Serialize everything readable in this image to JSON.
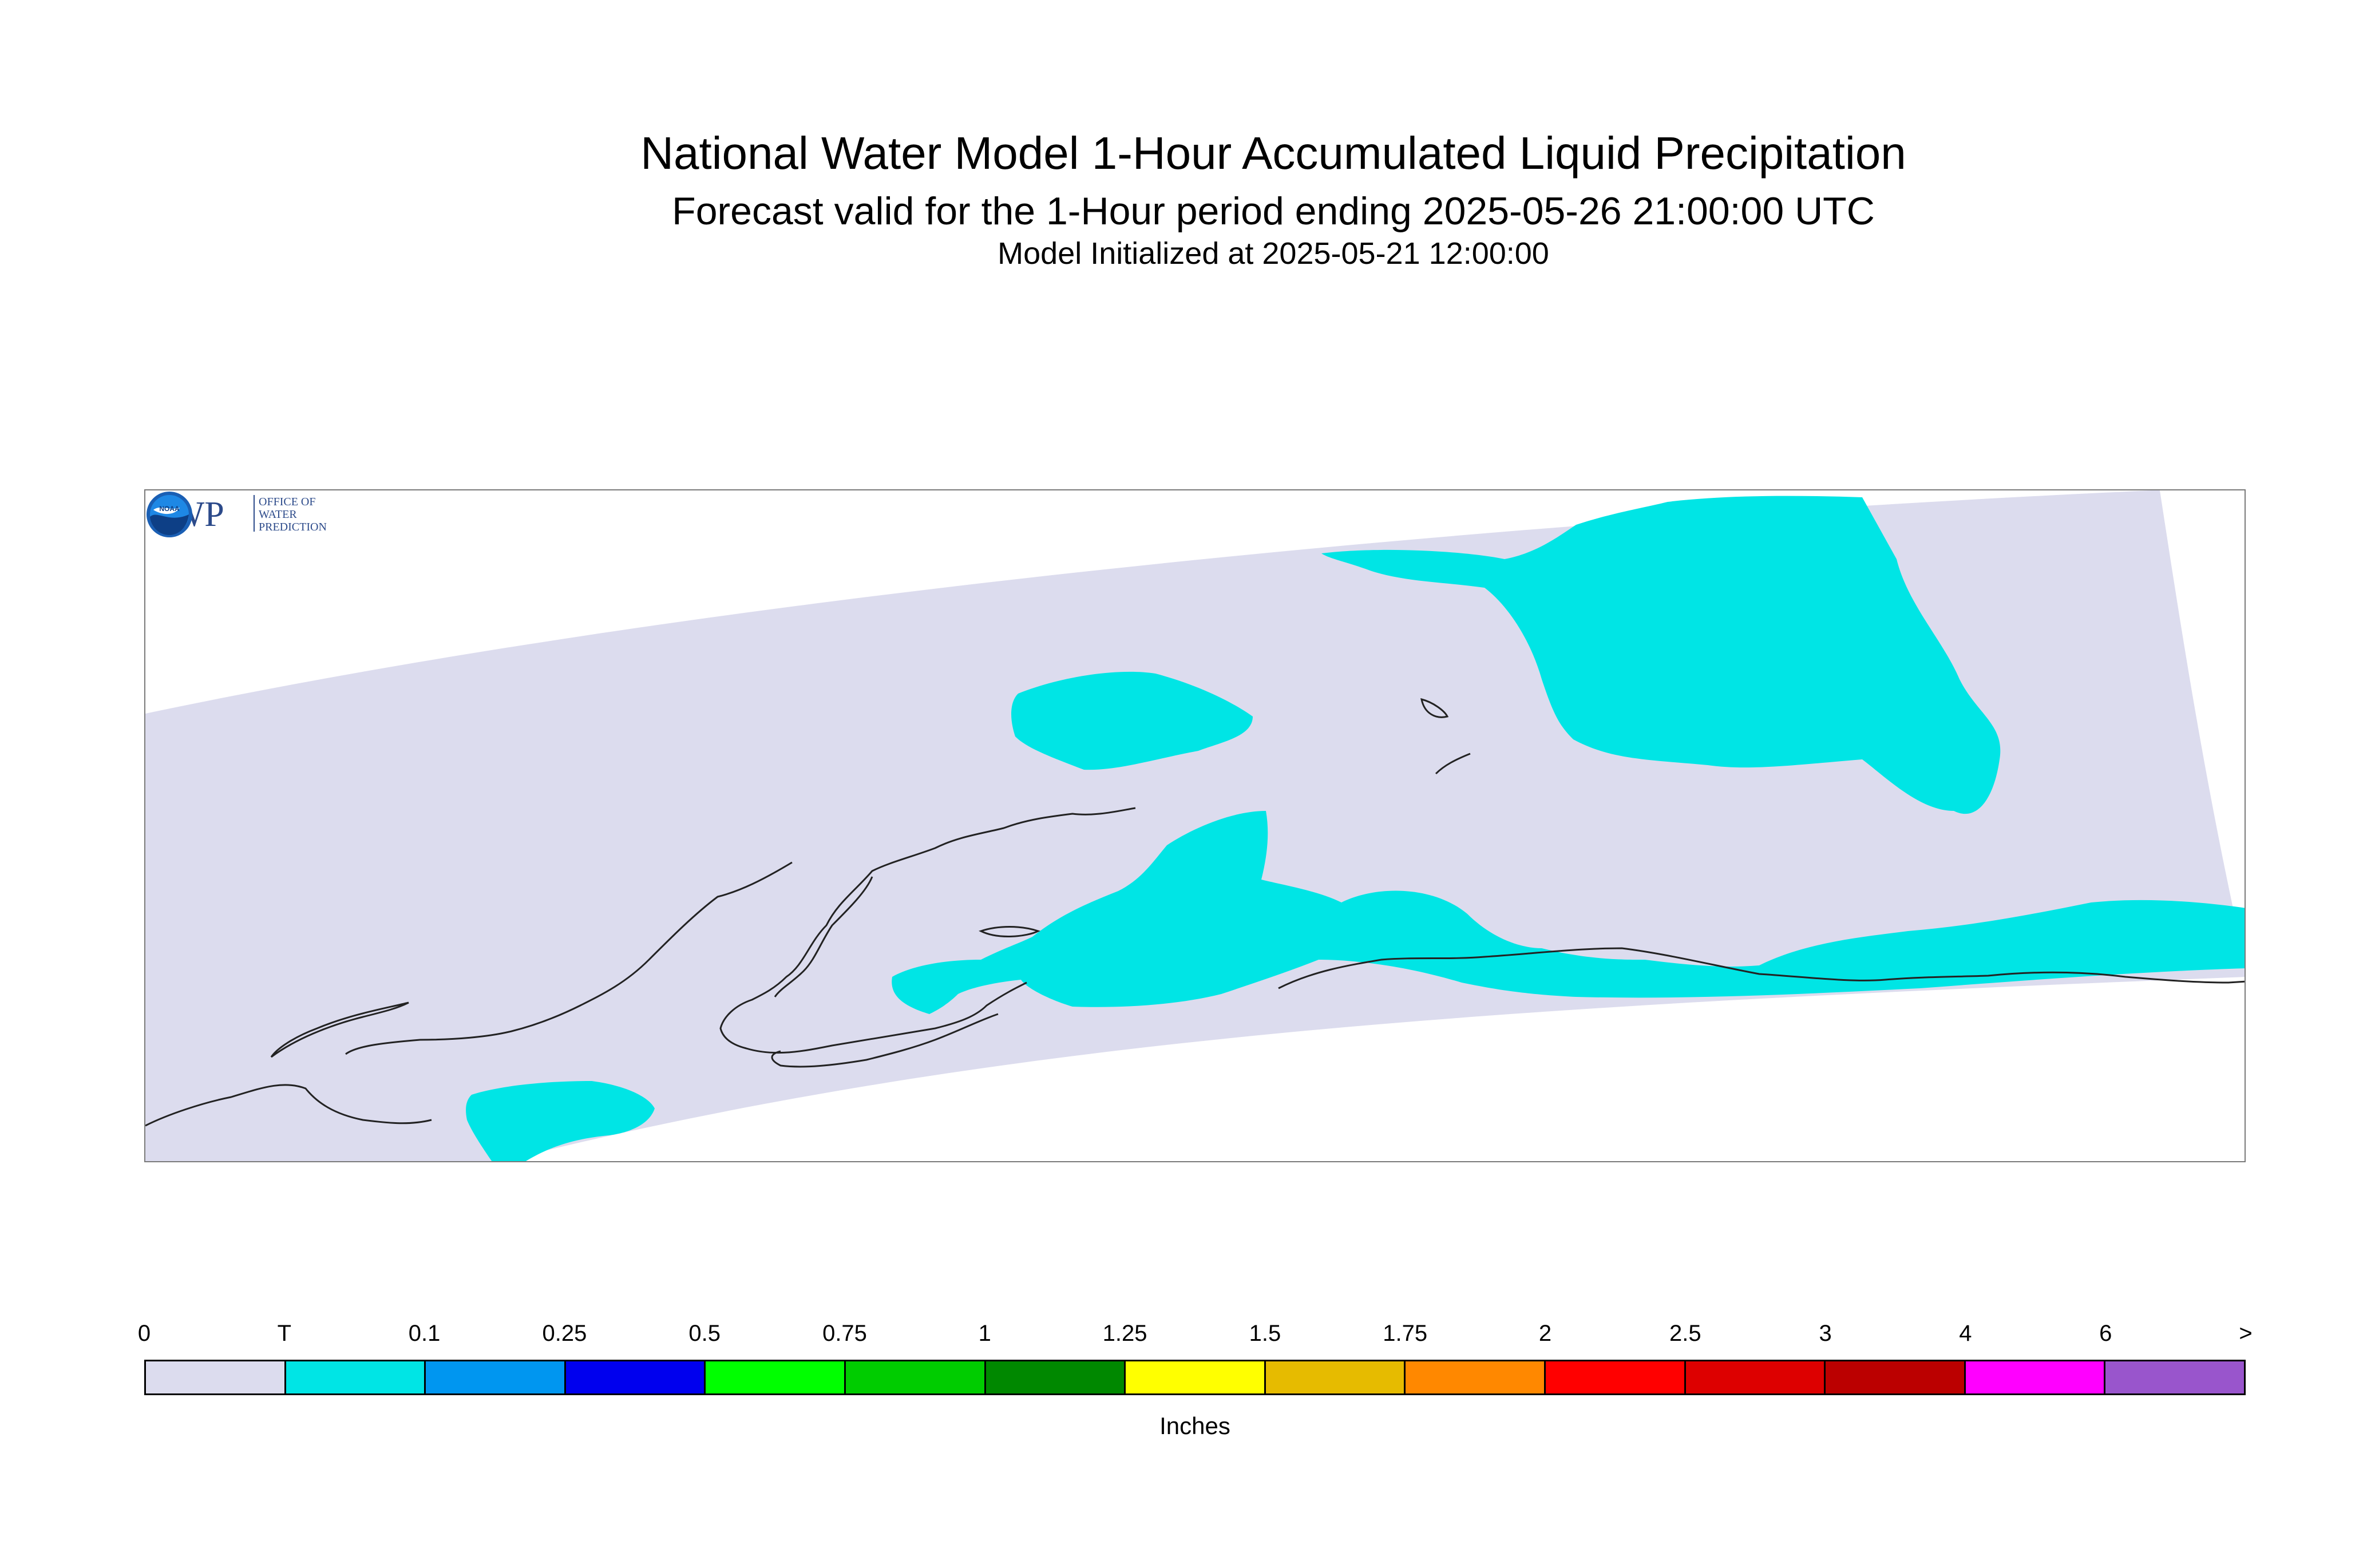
{
  "title": "National Water Model 1-Hour Accumulated Liquid Precipitation",
  "subtitle": "Forecast valid for the 1-Hour period ending 2025-05-26 21:00:00 UTC",
  "init_text": "Model Initialized at 2025-05-21 12:00:00",
  "logos": {
    "owp": {
      "main": "OWP",
      "line1": "OFFICE OF",
      "line2": "WATER",
      "line3": "PREDICTION"
    },
    "noaa": {
      "text": "NOAA"
    }
  },
  "colors": {
    "no_precip": "#dcdcee",
    "trace": "#00e5e5",
    "coastline": "#222222"
  },
  "legend": {
    "unit": "Inches",
    "labels": [
      "0",
      "T",
      "0.1",
      "0.25",
      "0.5",
      "0.75",
      "1",
      "1.25",
      "1.5",
      "1.75",
      "2",
      "2.5",
      "3",
      "4",
      "6",
      ">"
    ],
    "colors": [
      "#dcdcee",
      "#00e5e5",
      "#0096f0",
      "#0000ee",
      "#00ff00",
      "#00cc00",
      "#008800",
      "#ffff00",
      "#e6bb00",
      "#ff8800",
      "#ff0000",
      "#dd0000",
      "#bb0000",
      "#ff00ff",
      "#9955cc"
    ]
  }
}
